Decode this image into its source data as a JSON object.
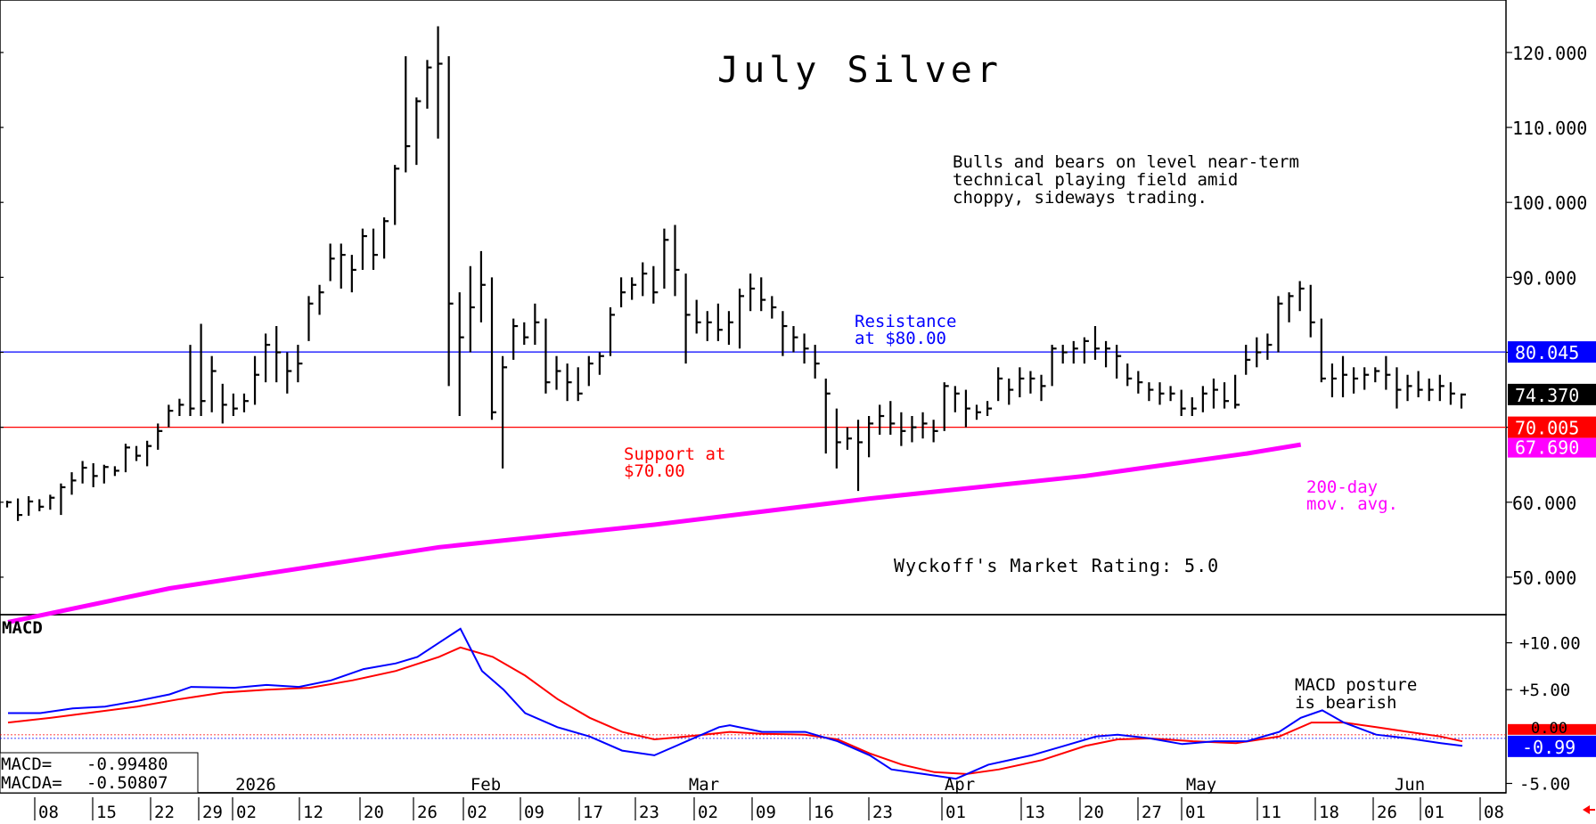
{
  "chart_data": [
    {
      "type": "ohlc",
      "title": "July Silver",
      "ylim": [
        45,
        127
      ],
      "yticks": [
        "120.000",
        "110.000",
        "100.000",
        "90.000",
        "60.000",
        "50.000"
      ],
      "x_month_labels": [
        {
          "label": "2026",
          "index": 0
        },
        {
          "label": "Feb",
          "index": 8
        },
        {
          "label": "Mar",
          "index": 12
        },
        {
          "label": "Apr",
          "index": 17
        },
        {
          "label": "May",
          "index": 21
        },
        {
          "label": "Jun",
          "index": 27
        }
      ],
      "x_week_labels": [
        "08",
        "15",
        "22",
        "29",
        "02",
        "12",
        "20",
        "26",
        "02",
        "09",
        "17",
        "23",
        "02",
        "09",
        "16",
        "23",
        "01",
        "13",
        "20",
        "27",
        "01",
        "11",
        "18",
        "26",
        "01",
        "08"
      ],
      "annotation": "Bulls and bears on level near-term\ntechnical playing field amid\nchoppy, sideways trading.",
      "resistance": {
        "value": 80.045,
        "label": "80.045",
        "text": "Resistance\nat $80.00",
        "color": "#0000ff"
      },
      "support": {
        "value": 70.005,
        "label": "70.005",
        "text": "Support at\n$70.00",
        "color": "#ff0000"
      },
      "last_price": {
        "value": 74.37,
        "label": "74.370"
      },
      "moving_average": {
        "name": "200-day\nmov. avg.",
        "value_label": "67.690",
        "color": "#ff00ff",
        "points": [
          [
            0,
            44
          ],
          [
            15,
            48.5
          ],
          [
            40,
            54
          ],
          [
            60,
            57
          ],
          [
            80,
            60.5
          ],
          [
            100,
            63.5
          ],
          [
            115,
            66.5
          ],
          [
            120,
            67.69
          ]
        ]
      },
      "rating": "Wyckoff's Market Rating: 5.0",
      "bars": [
        [
          60.2,
          59.3,
          60.0
        ],
        [
          60.5,
          57.5,
          58.3
        ],
        [
          60.8,
          58.2,
          60.1
        ],
        [
          60.4,
          58.8,
          59.4
        ],
        [
          61.0,
          59.0,
          60.6
        ],
        [
          62.5,
          58.3,
          62.0
        ],
        [
          64.0,
          61.0,
          62.9
        ],
        [
          65.5,
          62.5,
          64.6
        ],
        [
          65.2,
          62.0,
          63.5
        ],
        [
          65.0,
          62.5,
          64.7
        ],
        [
          64.8,
          63.5,
          64.2
        ],
        [
          67.8,
          64.0,
          67.3
        ],
        [
          67.5,
          65.5,
          66.2
        ],
        [
          68.2,
          64.8,
          67.5
        ],
        [
          70.5,
          67.0,
          69.5
        ],
        [
          73.0,
          70.0,
          72.2
        ],
        [
          73.8,
          71.5,
          73.0
        ],
        [
          81.0,
          71.5,
          72.5
        ],
        [
          83.8,
          71.5,
          73.5
        ],
        [
          79.5,
          72.0,
          77.5
        ],
        [
          75.8,
          70.5,
          73.0
        ],
        [
          74.5,
          71.5,
          72.5
        ],
        [
          74.5,
          72.0,
          73.5
        ],
        [
          79.5,
          73.0,
          77.0
        ],
        [
          82.5,
          76.0,
          81.0
        ],
        [
          83.5,
          76.0,
          80.0
        ],
        [
          80.0,
          74.5,
          77.5
        ],
        [
          81.0,
          76.0,
          78.5
        ],
        [
          87.5,
          81.5,
          86.5
        ],
        [
          89.0,
          85.0,
          88.0
        ],
        [
          94.5,
          89.5,
          92.5
        ],
        [
          94.5,
          88.5,
          93.0
        ],
        [
          93.0,
          88.0,
          91.0
        ],
        [
          96.5,
          91.0,
          95.5
        ],
        [
          96.5,
          91.0,
          93.0
        ],
        [
          98.0,
          92.5,
          97.5
        ],
        [
          105.0,
          97.0,
          104.5
        ],
        [
          119.5,
          104.0,
          107.5
        ],
        [
          114.0,
          105.0,
          113.5
        ],
        [
          119.0,
          112.5,
          118.0
        ],
        [
          123.5,
          108.5,
          118.5
        ],
        [
          119.5,
          75.5,
          86.5
        ],
        [
          88.0,
          71.5,
          82.0
        ],
        [
          91.5,
          80.0,
          86.0
        ],
        [
          93.5,
          84.0,
          89.0
        ],
        [
          90.0,
          71.0,
          72.0
        ],
        [
          79.5,
          64.5,
          78.0
        ],
        [
          84.5,
          79.0,
          83.5
        ],
        [
          84.0,
          81.0,
          82.0
        ],
        [
          86.5,
          81.0,
          84.0
        ],
        [
          84.5,
          74.5,
          76.0
        ],
        [
          79.5,
          75.0,
          77.5
        ],
        [
          78.5,
          73.5,
          76.0
        ],
        [
          78.0,
          73.5,
          74.5
        ],
        [
          79.5,
          75.5,
          78.5
        ],
        [
          80.0,
          77.0,
          79.5
        ],
        [
          86.0,
          79.5,
          85.0
        ],
        [
          90.0,
          86.0,
          88.0
        ],
        [
          90.0,
          87.0,
          89.0
        ],
        [
          92.0,
          87.5,
          90.5
        ],
        [
          91.5,
          86.5,
          88.0
        ],
        [
          96.5,
          88.5,
          95.0
        ],
        [
          97.0,
          87.5,
          91.0
        ],
        [
          90.5,
          78.5,
          85.0
        ],
        [
          87.0,
          82.5,
          84.0
        ],
        [
          85.5,
          81.5,
          84.0
        ],
        [
          86.5,
          81.5,
          83.0
        ],
        [
          85.5,
          81.0,
          84.0
        ],
        [
          88.5,
          80.5,
          87.5
        ],
        [
          90.5,
          85.5,
          88.5
        ],
        [
          90.0,
          85.5,
          87.0
        ],
        [
          87.5,
          84.5,
          86.0
        ],
        [
          85.5,
          79.5,
          83.5
        ],
        [
          83.5,
          80.0,
          82.0
        ],
        [
          82.5,
          78.5,
          80.5
        ],
        [
          81.0,
          76.5,
          78.5
        ],
        [
          76.5,
          66.5,
          74.5
        ],
        [
          72.5,
          64.5,
          68.0
        ],
        [
          70.0,
          67.0,
          68.5
        ],
        [
          71.0,
          61.5,
          68.0
        ],
        [
          71.5,
          66.0,
          70.5
        ],
        [
          73.0,
          69.0,
          71.5
        ],
        [
          73.5,
          69.0,
          70.5
        ],
        [
          72.0,
          67.5,
          69.5
        ],
        [
          71.5,
          68.0,
          70.0
        ],
        [
          72.0,
          68.5,
          70.5
        ],
        [
          71.0,
          68.0,
          69.5
        ],
        [
          76.0,
          69.5,
          75.5
        ],
        [
          75.5,
          72.0,
          74.5
        ],
        [
          75.0,
          70.0,
          72.5
        ],
        [
          73.0,
          71.0,
          72.0
        ],
        [
          73.5,
          71.5,
          72.5
        ],
        [
          78.0,
          73.5,
          76.5
        ],
        [
          76.5,
          73.0,
          75.0
        ],
        [
          78.0,
          74.0,
          76.5
        ],
        [
          77.5,
          74.5,
          76.5
        ],
        [
          77.0,
          73.5,
          75.5
        ],
        [
          81.0,
          75.5,
          80.5
        ],
        [
          81.0,
          78.5,
          80.0
        ],
        [
          81.5,
          78.5,
          80.5
        ],
        [
          82.0,
          78.5,
          81.5
        ],
        [
          83.5,
          79.0,
          80.5
        ],
        [
          81.5,
          78.0,
          80.5
        ],
        [
          81.0,
          76.5,
          79.5
        ],
        [
          78.5,
          75.5,
          76.5
        ],
        [
          77.5,
          74.5,
          76.0
        ],
        [
          76.0,
          73.5,
          75.0
        ],
        [
          76.0,
          73.0,
          74.5
        ],
        [
          75.5,
          73.5,
          74.5
        ],
        [
          75.0,
          71.5,
          72.5
        ],
        [
          74.0,
          71.5,
          72.5
        ],
        [
          75.5,
          72.0,
          74.5
        ],
        [
          76.5,
          72.5,
          75.0
        ],
        [
          76.0,
          72.5,
          73.5
        ],
        [
          77.0,
          72.5,
          73.0
        ],
        [
          81.0,
          77.0,
          79.0
        ],
        [
          82.0,
          78.0,
          80.0
        ],
        [
          82.5,
          79.0,
          81.0
        ],
        [
          87.5,
          80.0,
          86.5
        ],
        [
          88.0,
          84.0,
          87.5
        ],
        [
          89.5,
          85.5,
          88.5
        ],
        [
          89.0,
          82.0,
          84.0
        ],
        [
          84.5,
          76.0,
          76.5
        ],
        [
          78.5,
          74.0,
          76.5
        ],
        [
          79.5,
          74.0,
          77.0
        ],
        [
          78.0,
          74.5,
          76.5
        ],
        [
          78.0,
          75.0,
          77.0
        ],
        [
          78.0,
          76.0,
          77.5
        ],
        [
          79.5,
          75.0,
          77.0
        ],
        [
          78.0,
          72.5,
          75.0
        ],
        [
          77.0,
          73.5,
          75.5
        ],
        [
          77.5,
          74.0,
          75.0
        ],
        [
          76.5,
          73.5,
          75.0
        ],
        [
          77.0,
          73.5,
          75.5
        ],
        [
          76.0,
          73.0,
          74.5
        ],
        [
          74.5,
          72.5,
          74.37
        ]
      ]
    },
    {
      "type": "line",
      "title": "MACD",
      "ylim": [
        -6,
        13
      ],
      "yticks": [
        "+10.00",
        "+5.00",
        "-5.00"
      ],
      "legend": [
        {
          "label": "MACD=",
          "value": "-0.99480"
        },
        {
          "label": "MACDA=",
          "value": "-0.50807"
        }
      ],
      "annotation": "MACD posture\nis bearish",
      "last_value": {
        "label": "-0.99",
        "color": "#0000ff"
      },
      "zero_label": "0.00",
      "series": [
        {
          "name": "MACD",
          "color": "#0000ff",
          "points": [
            [
              0,
              2.5
            ],
            [
              3,
              2.5
            ],
            [
              6,
              3.0
            ],
            [
              9,
              3.2
            ],
            [
              12,
              3.8
            ],
            [
              15,
              4.5
            ],
            [
              17,
              5.3
            ],
            [
              21,
              5.2
            ],
            [
              24,
              5.5
            ],
            [
              27,
              5.3
            ],
            [
              30,
              6.0
            ],
            [
              33,
              7.2
            ],
            [
              36,
              7.8
            ],
            [
              38,
              8.5
            ],
            [
              40,
              10.0
            ],
            [
              42,
              11.5
            ],
            [
              44,
              7.0
            ],
            [
              46,
              5.0
            ],
            [
              48,
              2.5
            ],
            [
              51,
              1.0
            ],
            [
              54,
              0.0
            ],
            [
              57,
              -1.5
            ],
            [
              60,
              -2.0
            ],
            [
              63,
              -0.5
            ],
            [
              66,
              1.0
            ],
            [
              67,
              1.2
            ],
            [
              70,
              0.5
            ],
            [
              74,
              0.5
            ],
            [
              77,
              -0.5
            ],
            [
              80,
              -2.0
            ],
            [
              82,
              -3.5
            ],
            [
              85,
              -4.0
            ],
            [
              88,
              -4.5
            ],
            [
              91,
              -3.0
            ],
            [
              95,
              -2.0
            ],
            [
              98,
              -1.0
            ],
            [
              101,
              0.0
            ],
            [
              103,
              0.2
            ],
            [
              106,
              -0.2
            ],
            [
              109,
              -0.8
            ],
            [
              112,
              -0.5
            ],
            [
              115,
              -0.5
            ],
            [
              118,
              0.5
            ],
            [
              120,
              2.0
            ],
            [
              122,
              2.8
            ],
            [
              124,
              1.5
            ],
            [
              127,
              0.2
            ],
            [
              130,
              -0.2
            ],
            [
              133,
              -0.7
            ],
            [
              135,
              -0.99
            ]
          ]
        },
        {
          "name": "MACDA",
          "color": "#ff0000",
          "points": [
            [
              0,
              1.5
            ],
            [
              4,
              2.0
            ],
            [
              8,
              2.6
            ],
            [
              12,
              3.2
            ],
            [
              16,
              4.0
            ],
            [
              20,
              4.7
            ],
            [
              24,
              5.0
            ],
            [
              28,
              5.2
            ],
            [
              32,
              6.0
            ],
            [
              36,
              7.0
            ],
            [
              40,
              8.5
            ],
            [
              42,
              9.5
            ],
            [
              45,
              8.5
            ],
            [
              48,
              6.5
            ],
            [
              51,
              4.0
            ],
            [
              54,
              2.0
            ],
            [
              57,
              0.5
            ],
            [
              60,
              -0.3
            ],
            [
              63,
              0.0
            ],
            [
              67,
              0.5
            ],
            [
              70,
              0.3
            ],
            [
              74,
              0.2
            ],
            [
              77,
              -0.3
            ],
            [
              80,
              -1.8
            ],
            [
              83,
              -3.0
            ],
            [
              86,
              -3.8
            ],
            [
              89,
              -4.0
            ],
            [
              92,
              -3.5
            ],
            [
              96,
              -2.5
            ],
            [
              100,
              -1.0
            ],
            [
              103,
              -0.3
            ],
            [
              106,
              -0.2
            ],
            [
              110,
              -0.5
            ],
            [
              114,
              -0.7
            ],
            [
              118,
              0.0
            ],
            [
              121,
              1.5
            ],
            [
              124,
              1.5
            ],
            [
              127,
              1.0
            ],
            [
              130,
              0.5
            ],
            [
              133,
              0.0
            ],
            [
              135,
              -0.51
            ]
          ]
        }
      ]
    }
  ],
  "indicator_label": "MACD"
}
